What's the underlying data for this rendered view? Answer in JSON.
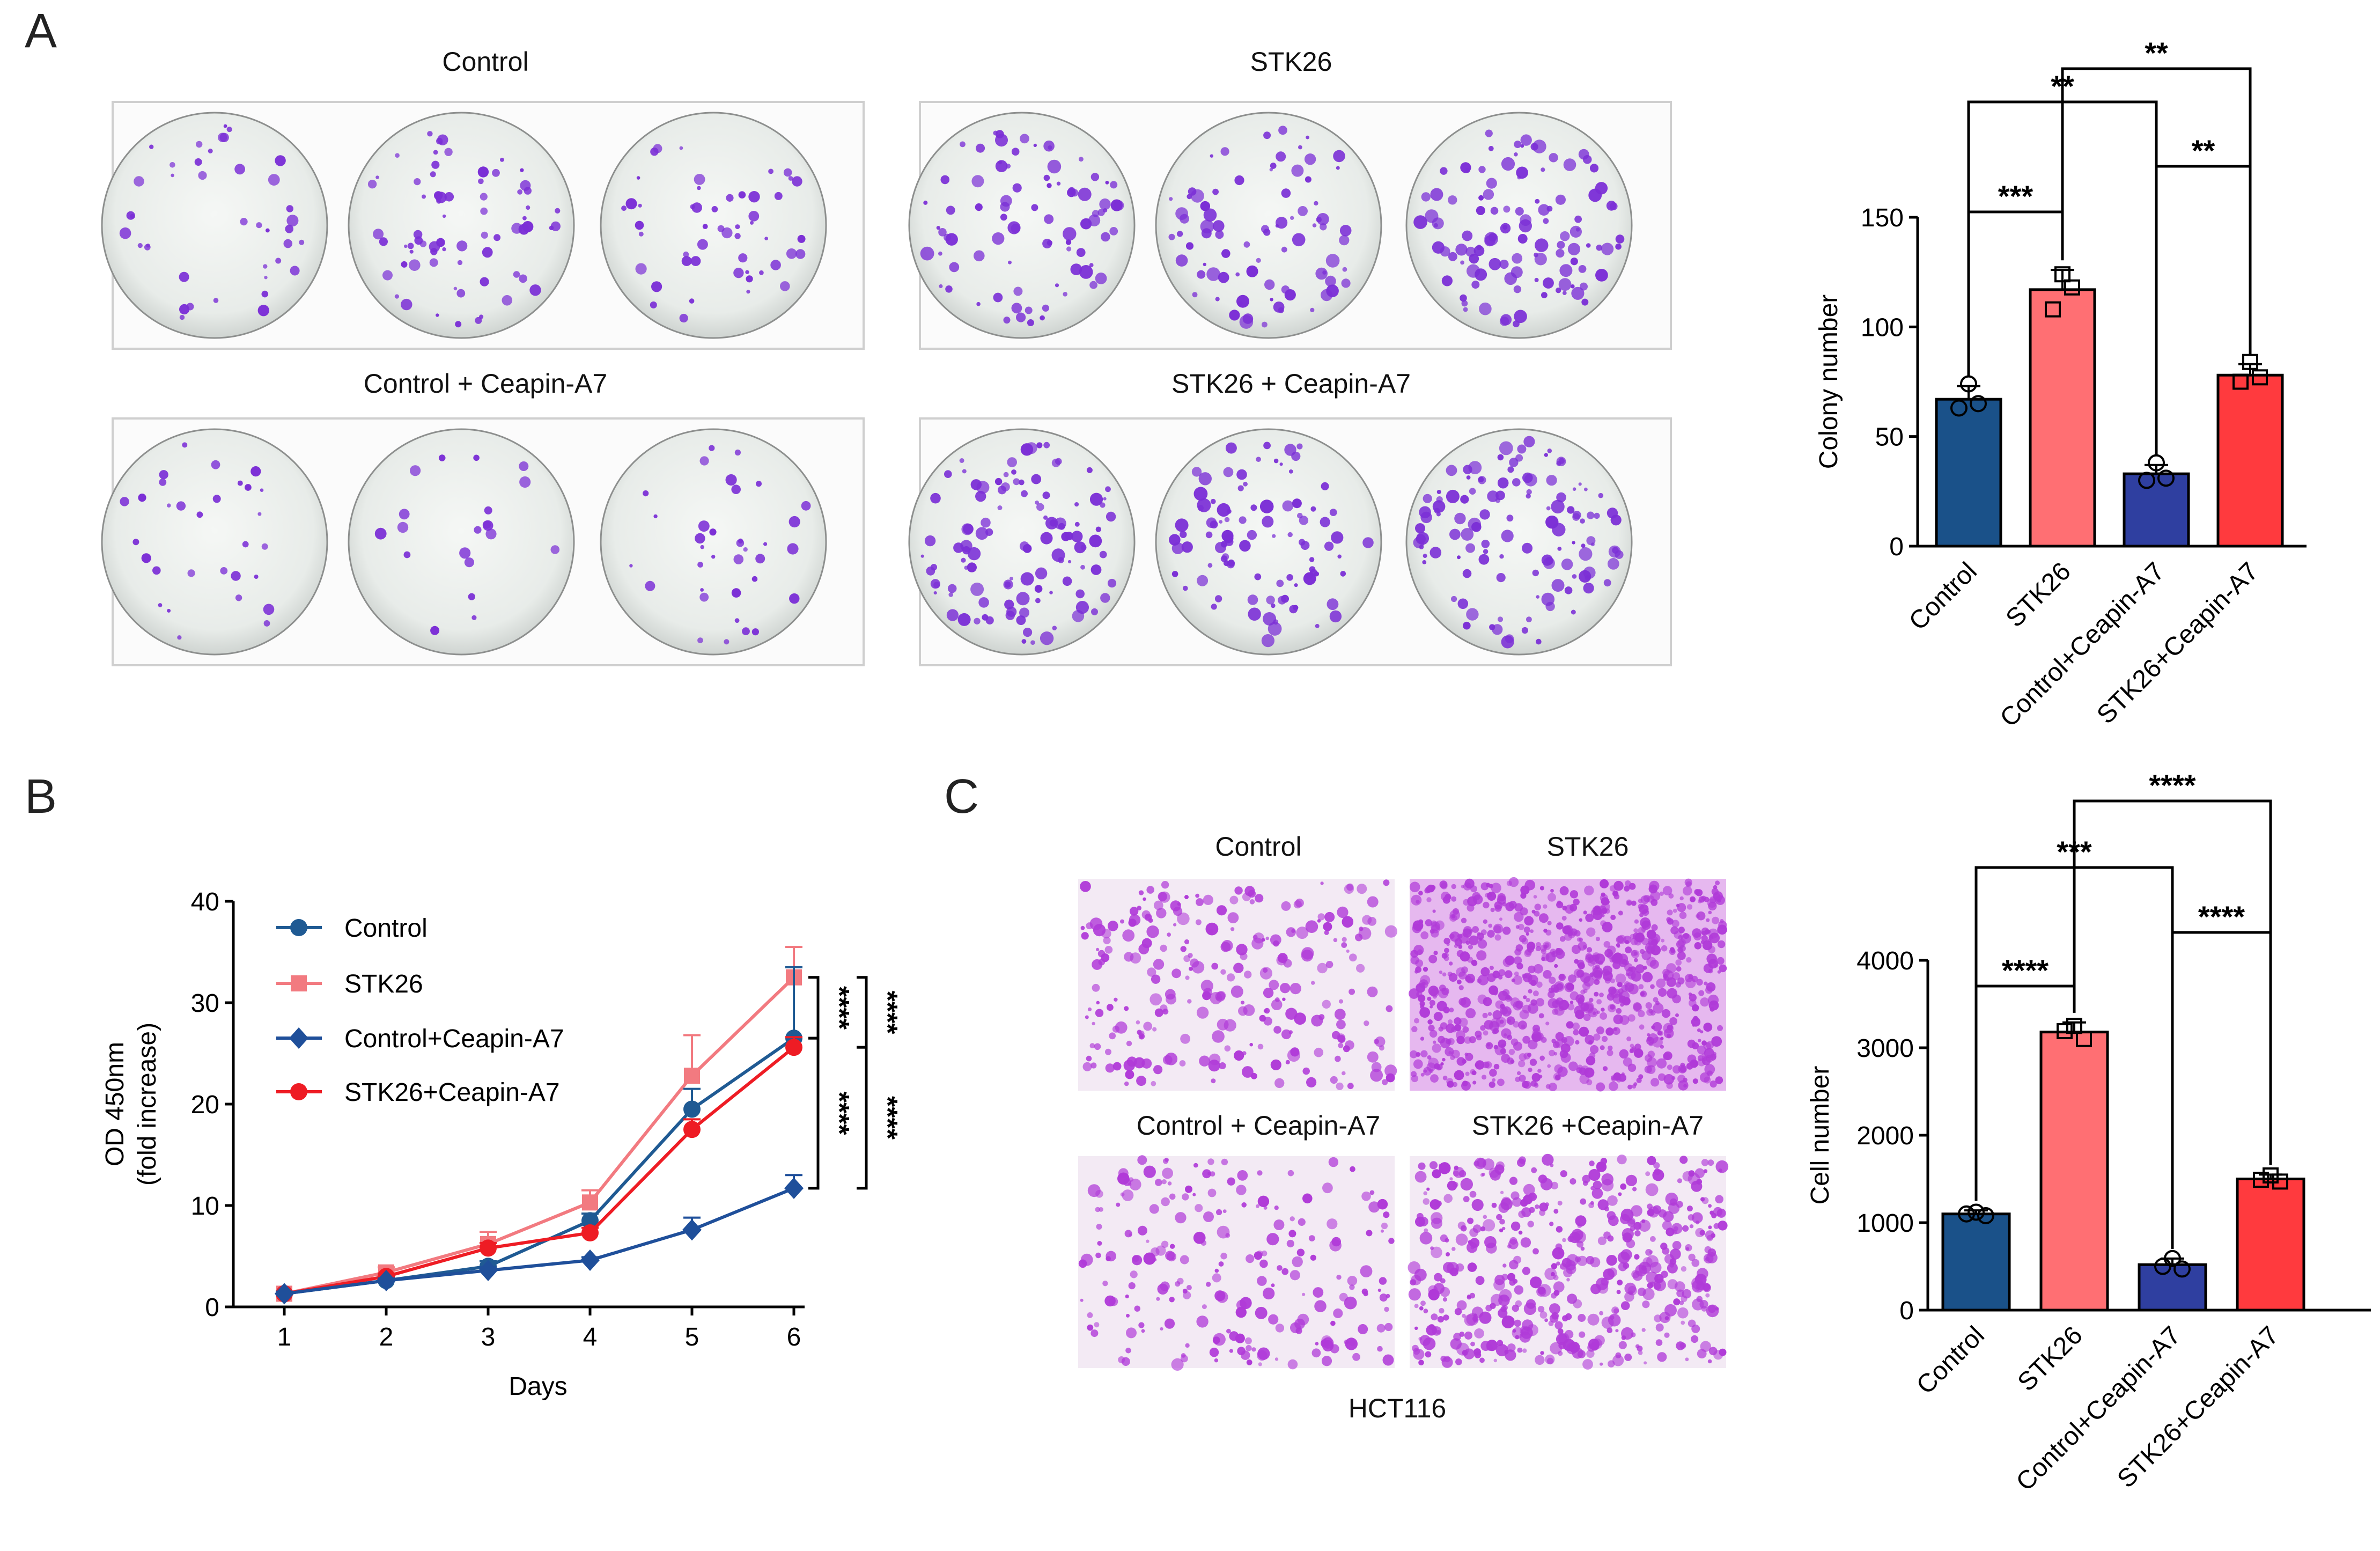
{
  "panels": {
    "a": {
      "letter": "A",
      "groups": [
        {
          "label": "Control"
        },
        {
          "label": "STK26"
        },
        {
          "label": "Control + Ceapin-A7"
        },
        {
          "label": "STK26 + Ceapin-A7"
        }
      ]
    },
    "b": {
      "letter": "B"
    },
    "c": {
      "letter": "C",
      "groups": [
        {
          "label": "Control"
        },
        {
          "label": "STK26"
        },
        {
          "label": "Control + Ceapin-A7"
        },
        {
          "label": "STK26 +Ceapin-A7"
        }
      ],
      "cell_line": "HCT116"
    }
  },
  "colors": {
    "control": "#1a5189",
    "stk26": "#ff6f73",
    "control_ceapin": "#2f3fa0",
    "stk26_ceapin": "#ff3a3e",
    "line_control": "#1f5a93",
    "line_stk26": "#f27a80",
    "line_control_ceapin": "#1f4f9a",
    "line_stk26_ceapin": "#ee1c24",
    "crystal_violet": "#7b2fd6",
    "transwell": "#b03ad8",
    "dish": "#eef1ef",
    "axis": "#000000"
  },
  "chart_data": [
    {
      "id": "colony",
      "type": "bar",
      "categories": [
        "Control",
        "STK26",
        "Control+Ceapin-A7",
        "STK26+Ceapin-A7"
      ],
      "values": [
        67,
        117,
        33,
        78
      ],
      "errors": [
        6,
        9,
        4,
        5
      ],
      "points": [
        [
          74,
          63,
          65
        ],
        [
          124,
          108,
          118
        ],
        [
          38,
          30,
          31
        ],
        [
          84,
          75,
          77
        ]
      ],
      "ylabel": "Colony number",
      "ylim": [
        0,
        150
      ],
      "yticks": [
        0,
        50,
        100,
        150
      ],
      "significance": [
        {
          "from": 0,
          "to": 1,
          "label": "***"
        },
        {
          "from": 2,
          "to": 3,
          "label": "**"
        },
        {
          "from": 0,
          "to": 2,
          "label": "**"
        },
        {
          "from": 1,
          "to": 3,
          "label": "**"
        }
      ]
    },
    {
      "id": "cck8",
      "type": "line",
      "x": [
        1,
        2,
        3,
        4,
        5,
        6
      ],
      "xlabel": "Days",
      "ylabel": [
        "OD 450nm",
        "(fold increase)"
      ],
      "ylim": [
        0,
        40
      ],
      "yticks": [
        0,
        10,
        20,
        30,
        40
      ],
      "series": [
        {
          "name": "Control",
          "marker": "circle",
          "values": [
            1.3,
            2.6,
            4.0,
            8.5,
            19.5,
            26.5
          ],
          "errors": [
            0.2,
            0.3,
            0.5,
            0.7,
            2.0,
            7.0
          ]
        },
        {
          "name": "STK26",
          "marker": "square",
          "values": [
            1.3,
            3.4,
            6.2,
            10.3,
            22.8,
            32.5
          ],
          "errors": [
            0.2,
            0.5,
            1.2,
            1.2,
            4.0,
            3.0
          ]
        },
        {
          "name": "Control+Ceapin-A7",
          "marker": "diamond",
          "values": [
            1.3,
            2.6,
            3.6,
            4.6,
            7.6,
            11.7
          ],
          "errors": [
            0.2,
            0.2,
            0.3,
            0.3,
            1.2,
            1.3
          ]
        },
        {
          "name": "STK26+Ceapin-A7",
          "marker": "circle",
          "values": [
            1.3,
            3.0,
            5.8,
            7.3,
            17.5,
            25.6
          ],
          "errors": [
            0.2,
            0.3,
            0.5,
            0.5,
            1.0,
            1.0
          ]
        }
      ],
      "significance": [
        {
          "label": "****",
          "y1": 32.5,
          "y2": 26.5
        },
        {
          "label": "****",
          "y1": 32.5,
          "y2": 25.6
        },
        {
          "label": "****",
          "y1": 26.5,
          "y2": 11.7
        },
        {
          "label": "****",
          "y1": 25.6,
          "y2": 11.7
        }
      ]
    },
    {
      "id": "migration",
      "type": "bar",
      "categories": [
        "Control",
        "STK26",
        "Control+Ceapin-A7",
        "STK26+Ceapin-A7"
      ],
      "values": [
        1100,
        3180,
        520,
        1500
      ],
      "errors": [
        40,
        110,
        70,
        50
      ],
      "points": [
        [
          1120,
          1100,
          1080
        ],
        [
          3250,
          3190,
          3100
        ],
        [
          590,
          500,
          470
        ],
        [
          1540,
          1490,
          1470
        ]
      ],
      "ylabel": "Cell number",
      "ylim": [
        0,
        4000
      ],
      "yticks": [
        0,
        1000,
        2000,
        3000,
        4000
      ],
      "significance": [
        {
          "from": 0,
          "to": 1,
          "label": "****"
        },
        {
          "from": 2,
          "to": 3,
          "label": "****"
        },
        {
          "from": 0,
          "to": 2,
          "label": "***"
        },
        {
          "from": 1,
          "to": 3,
          "label": "****"
        }
      ]
    }
  ]
}
